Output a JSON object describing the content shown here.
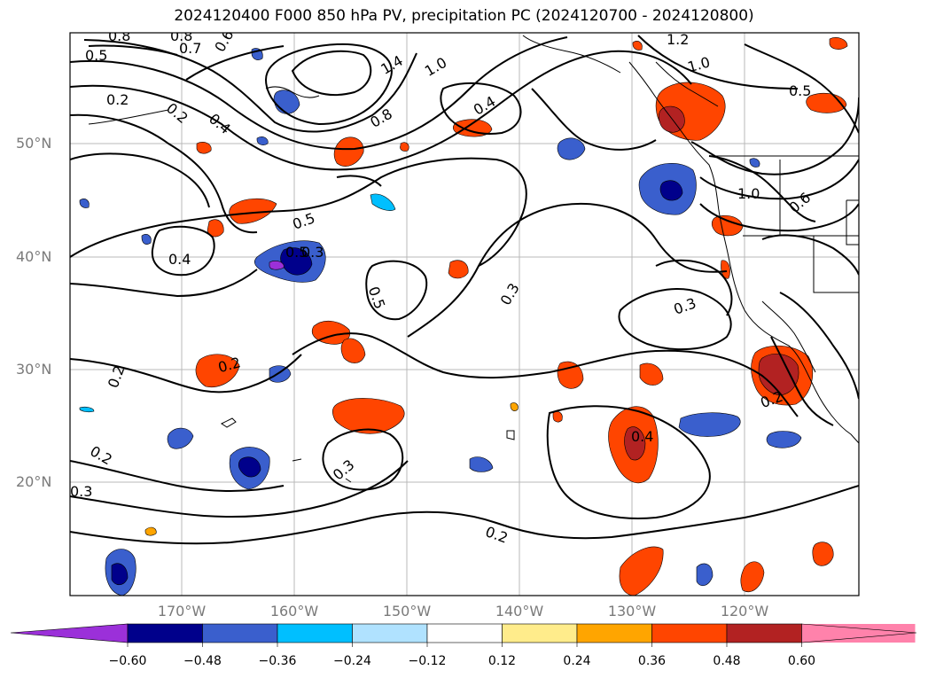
{
  "title": "2024120400 F000 850 hPa PV, precipitation PC (2024120700 - 2024120800)",
  "lat_labels": [
    "50°N",
    "40°N",
    "30°N",
    "20°N"
  ],
  "lon_labels": [
    "170°W",
    "160°W",
    "150°W",
    "140°W",
    "130°W",
    "120°W"
  ],
  "contour_labels": [
    "0.8",
    "0.8",
    "0.7",
    "0.6",
    "0.5",
    "1.4",
    "1.0",
    "1.2",
    "1.0",
    "0.5",
    "0.2",
    "0.2",
    "0.4",
    "0.8",
    "0.4",
    "1.0",
    "0.6",
    "0.5",
    "0.4",
    "0.5",
    "0.3",
    "0.3",
    "0.3",
    "0.5",
    "0.2",
    "0.2",
    "0.2",
    "0.2",
    "0.3",
    "0.4",
    "0.2",
    "0.3"
  ],
  "colorbar": {
    "tick_labels": [
      "−0.60",
      "−0.48",
      "−0.36",
      "−0.24",
      "−0.12",
      "0.12",
      "0.24",
      "0.36",
      "0.48",
      "0.60"
    ],
    "colors": [
      "#9b30d9",
      "#00008b",
      "#3a5fcd",
      "#00bfff",
      "#b0e2ff",
      "#ffffff",
      "#ffec8b",
      "#ffa500",
      "#ff4500",
      "#b22222",
      "#ff82ab"
    ]
  },
  "precip_colors": {
    "neg_strong": "#00008b",
    "neg_mid": "#3a5fcd",
    "neg_weak": "#00bfff",
    "neg_light": "#b0e2ff",
    "pos_light": "#ffec8b",
    "pos_weak": "#ffa500",
    "pos_mid": "#ff4500",
    "pos_strong": "#b22222",
    "purple": "#9b30d9"
  }
}
